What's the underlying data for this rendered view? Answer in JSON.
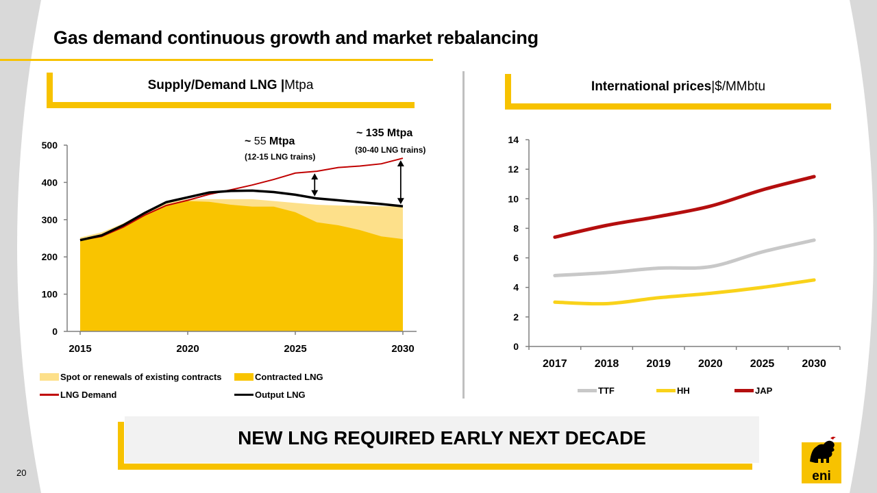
{
  "title": "Gas demand continuous growth and market rebalancing",
  "left_panel": {
    "title_bold": "Supply/Demand LNG |",
    "title_unit": "Mtpa"
  },
  "right_panel": {
    "title_bold": "International prices",
    "title_unit": "|$/MMbtu"
  },
  "annotations": {
    "gap1_prefix": "~ ",
    "gap1_value": "55",
    "gap1_unit": " Mtpa",
    "gap1_sub": "(12-15 LNG trains)",
    "gap2_main": "~ 135 Mtpa",
    "gap2_sub": "(30-40 LNG trains)"
  },
  "banner": "NEW LNG REQUIRED EARLY NEXT DECADE",
  "page_number": "20",
  "colors": {
    "accent": "#f7c200",
    "spot": "#fde08a",
    "contracted": "#f9c400",
    "demand": "#c00000",
    "output": "#000000",
    "ttf": "#c8c8c8",
    "hh": "#f9d21a",
    "jap": "#b40e0e"
  },
  "chart_data": [
    {
      "type": "area",
      "x": [
        2015,
        2016,
        2017,
        2018,
        2019,
        2020,
        2021,
        2022,
        2023,
        2024,
        2025,
        2026,
        2027,
        2028,
        2029,
        2030
      ],
      "x_ticks": [
        "2015",
        "2020",
        "2025",
        "2030"
      ],
      "ylim": [
        0,
        500
      ],
      "y_ticks": [
        "0",
        "100",
        "200",
        "300",
        "400",
        "500"
      ],
      "series": [
        {
          "name": "Spot or renewals of existing contracts",
          "kind": "area",
          "values": [
            252,
            266,
            290,
            320,
            345,
            355,
            355,
            355,
            355,
            350,
            345,
            340,
            338,
            337,
            336,
            335
          ]
        },
        {
          "name": "Contracted LNG",
          "kind": "area",
          "values": [
            245,
            255,
            280,
            312,
            338,
            350,
            348,
            340,
            335,
            335,
            320,
            293,
            285,
            272,
            255,
            248
          ]
        },
        {
          "name": "LNG Demand",
          "kind": "line",
          "values": [
            245,
            255,
            280,
            312,
            338,
            352,
            368,
            380,
            393,
            408,
            425,
            430,
            440,
            444,
            450,
            465
          ]
        },
        {
          "name": "Output LNG",
          "kind": "line",
          "values": [
            245,
            258,
            285,
            318,
            347,
            360,
            373,
            377,
            378,
            374,
            367,
            357,
            352,
            347,
            342,
            336
          ]
        }
      ]
    },
    {
      "type": "line",
      "categories": [
        "2017",
        "2018",
        "2019",
        "2020",
        "2025",
        "2030"
      ],
      "ylim": [
        0,
        14
      ],
      "y_ticks": [
        "0",
        "2",
        "4",
        "6",
        "8",
        "10",
        "12",
        "14"
      ],
      "series": [
        {
          "name": "TTF",
          "values": [
            4.8,
            5.0,
            5.3,
            5.4,
            6.4,
            7.2
          ]
        },
        {
          "name": "HH",
          "values": [
            3.0,
            2.9,
            3.3,
            3.6,
            4.0,
            4.5
          ]
        },
        {
          "name": "JAP",
          "values": [
            7.4,
            8.2,
            8.8,
            9.5,
            10.6,
            11.5
          ]
        }
      ]
    }
  ]
}
